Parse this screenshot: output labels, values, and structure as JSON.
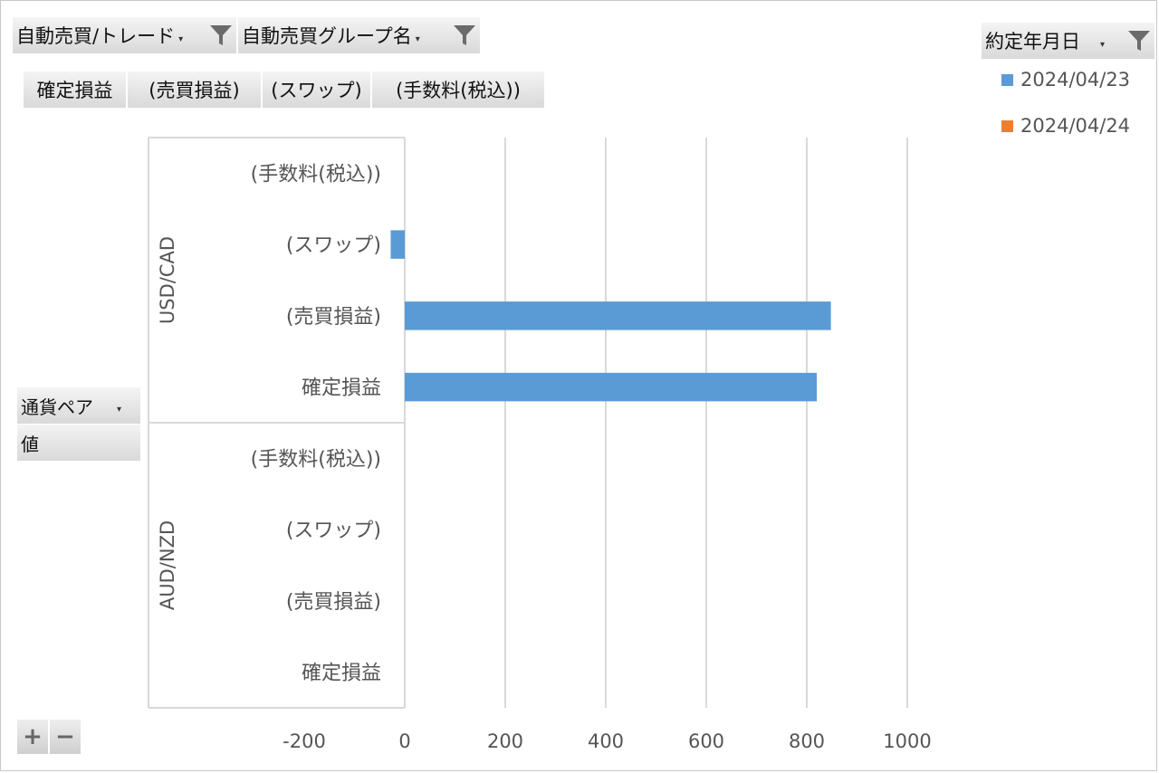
{
  "filters": {
    "trade": "自動売買/トレード",
    "group": "自動売買グループ名",
    "date": "約定年月日"
  },
  "value_fields": [
    "確定損益",
    "(売買損益)",
    "(スワップ)",
    "(手数料(税込))"
  ],
  "row_fields": {
    "pair": "通貨ペア",
    "values": "値"
  },
  "buttons": {
    "expand": "+",
    "collapse": "−"
  },
  "icons": [
    "funnel-icon",
    "dropdown-arrow-icon"
  ],
  "colors": {
    "series_1": "#5b9bd5",
    "series_2": "#ed7d31",
    "grid": "#d9d9d9"
  },
  "chart_data": {
    "type": "bar",
    "orientation": "horizontal",
    "groups": [
      "USD/CAD",
      "AUD/NZD"
    ],
    "categories": [
      "(手数料(税込))",
      "(スワップ)",
      "(売買損益)",
      "確定損益"
    ],
    "series": [
      {
        "name": "2024/04/23",
        "color": "#5b9bd5",
        "values": [
          [
            0,
            -28,
            848,
            820
          ],
          [
            null,
            null,
            null,
            null
          ]
        ]
      },
      {
        "name": "2024/04/24",
        "color": "#ed7d31",
        "values": [
          [
            null,
            null,
            null,
            null
          ],
          [
            null,
            null,
            null,
            null
          ]
        ]
      }
    ],
    "xlim": [
      -200,
      1000
    ],
    "xticks": [
      -200,
      0,
      200,
      400,
      600,
      800,
      1000
    ],
    "grid": true,
    "legend": "top-right"
  }
}
